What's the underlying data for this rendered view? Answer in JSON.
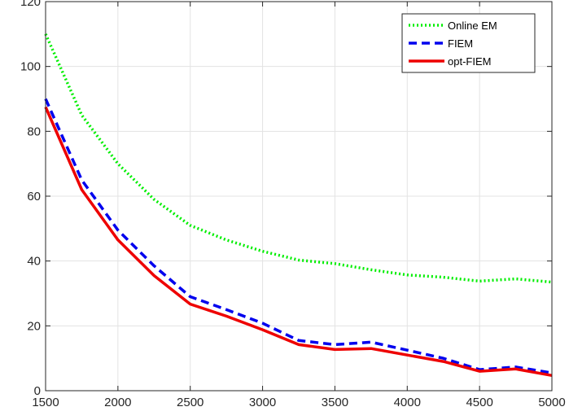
{
  "chart_data": {
    "type": "line",
    "title": "",
    "xlabel": "",
    "ylabel": "",
    "xlim": [
      1500,
      5000
    ],
    "ylim": [
      0,
      120
    ],
    "xticks": [
      1500,
      2000,
      2500,
      3000,
      3500,
      4000,
      4500,
      5000
    ],
    "yticks": [
      0,
      20,
      40,
      60,
      80,
      100,
      120
    ],
    "grid": true,
    "legend_position": "top-right",
    "x": [
      1500,
      1750,
      2000,
      2250,
      2500,
      2750,
      3000,
      3250,
      3500,
      3750,
      4000,
      4250,
      4500,
      4750,
      5000
    ],
    "series": [
      {
        "name": "Online EM",
        "color": "#00ee00",
        "style": "dotted",
        "values": [
          110,
          85,
          70,
          59,
          51,
          46.5,
          43,
          40.3,
          39.2,
          37.3,
          35.7,
          35,
          33.8,
          34.5,
          33.5
        ]
      },
      {
        "name": "FIEM",
        "color": "#0000ee",
        "style": "dashed",
        "values": [
          90,
          65,
          49.5,
          38.5,
          29,
          25,
          20.8,
          15.5,
          14.2,
          15,
          12.5,
          10,
          6.5,
          7.3,
          5.5
        ]
      },
      {
        "name": "opt-FIEM",
        "color": "#ee0000",
        "style": "solid",
        "values": [
          87.5,
          62,
          46.5,
          35.5,
          26.7,
          23,
          18.8,
          14.2,
          12.7,
          13,
          11,
          9,
          6,
          6.7,
          4.7
        ]
      }
    ]
  }
}
